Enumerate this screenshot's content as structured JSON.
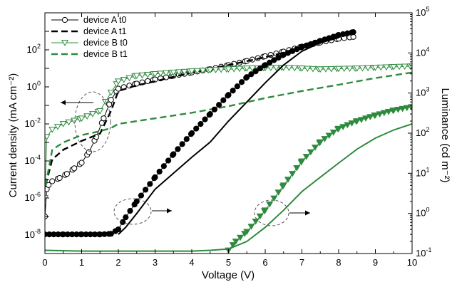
{
  "chart_data": {
    "type": "line",
    "title": "",
    "xlabel": "Voltage (V)",
    "ylabel_left": "Current density (mA cm⁻²)",
    "ylabel_right": "Luminance (cd m⁻²)",
    "xlim": [
      0,
      10
    ],
    "ylim_left": [
      1e-09,
      10000
    ],
    "ylim_right": [
      0.1,
      100000
    ],
    "yscale_left": "log",
    "yscale_right": "log",
    "grid": false,
    "legend_position": "top-left",
    "x_ticks": [
      "0",
      "1",
      "2",
      "3",
      "4",
      "5",
      "6",
      "7",
      "8",
      "9",
      "10"
    ],
    "y_left_ticks": [
      {
        "base": "10",
        "exp": "-8",
        "value": 1e-08
      },
      {
        "base": "10",
        "exp": "-6",
        "value": 1e-06
      },
      {
        "base": "10",
        "exp": "-4",
        "value": 0.0001
      },
      {
        "base": "10",
        "exp": "-2",
        "value": 0.01
      },
      {
        "base": "10",
        "exp": "0",
        "value": 1
      },
      {
        "base": "10",
        "exp": "2",
        "value": 100
      }
    ],
    "y_right_ticks": [
      {
        "base": "10",
        "exp": "-1",
        "value": 0.1
      },
      {
        "base": "10",
        "exp": "0",
        "value": 1
      },
      {
        "base": "10",
        "exp": "1",
        "value": 10
      },
      {
        "base": "10",
        "exp": "2",
        "value": 100
      },
      {
        "base": "10",
        "exp": "3",
        "value": 1000
      },
      {
        "base": "10",
        "exp": "4",
        "value": 10000
      },
      {
        "base": "10",
        "exp": "5",
        "value": 100000
      }
    ],
    "series": [
      {
        "name": "device A t0",
        "quantity": "current",
        "axis": "left",
        "color": "#000000",
        "style": "solid",
        "marker": "circle-open",
        "x": [
          0,
          0.05,
          0.1,
          0.2,
          0.4,
          0.6,
          0.8,
          1.0,
          1.2,
          1.4,
          1.6,
          1.8,
          2.0,
          2.5,
          3.0,
          3.5,
          4.0,
          4.5,
          5.0,
          5.5,
          6.0,
          6.5,
          7.0,
          7.5,
          8.0,
          8.4
        ],
        "y": [
          1e-07,
          3e-06,
          5e-06,
          8e-06,
          1.2e-05,
          2e-05,
          4e-05,
          8e-05,
          0.0003,
          0.002,
          0.02,
          0.2,
          0.8,
          1.5,
          2.5,
          4,
          6,
          9,
          15,
          25,
          45,
          80,
          150,
          250,
          400,
          500
        ]
      },
      {
        "name": "device A t1",
        "quantity": "current",
        "axis": "left",
        "color": "#000000",
        "style": "dashed",
        "marker": "none",
        "x": [
          0.02,
          0.2,
          0.5,
          1.0,
          1.5,
          1.8,
          2.0,
          2.5,
          3.0,
          3.5,
          4.0,
          5.0,
          6.0,
          6.5,
          7.0
        ],
        "y": [
          5e-06,
          0.00012,
          0.0004,
          0.0012,
          0.003,
          0.05,
          0.6,
          1.2,
          2,
          3.5,
          6,
          15,
          40,
          70,
          150
        ]
      },
      {
        "name": "device B t0",
        "quantity": "current",
        "axis": "left",
        "color": "#2e8b3e",
        "style": "solid",
        "marker": "triangle-down-open",
        "x": [
          0,
          0.05,
          0.2,
          0.5,
          1.0,
          1.5,
          1.8,
          2.0,
          2.5,
          3.0,
          3.5,
          4.0,
          4.5,
          5.0,
          5.5,
          6.0,
          6.5,
          7.0,
          7.5,
          8.0,
          8.5,
          9.0,
          9.5,
          10
        ],
        "y": [
          1e-06,
          0.002,
          0.005,
          0.01,
          0.02,
          0.05,
          0.5,
          2,
          4,
          5,
          6,
          7,
          8,
          9,
          10,
          10.5,
          11,
          10,
          9,
          9.5,
          10,
          11,
          12,
          13
        ]
      },
      {
        "name": "device B t1",
        "quantity": "current",
        "axis": "left",
        "color": "#2e8b3e",
        "style": "dashed",
        "marker": "none",
        "x": [
          0.02,
          0.2,
          0.5,
          1.0,
          1.5,
          1.8,
          2.0,
          3.0,
          4.0,
          5.0,
          6.0,
          7.0,
          8.0,
          9.0,
          10
        ],
        "y": [
          5e-06,
          0.0004,
          0.001,
          0.0025,
          0.004,
          0.006,
          0.01,
          0.02,
          0.04,
          0.09,
          0.25,
          0.6,
          1.3,
          3,
          6
        ]
      },
      {
        "name": "device A t0",
        "quantity": "luminance",
        "axis": "right",
        "color": "#000000",
        "style": "solid",
        "marker": "circle-filled",
        "x": [
          0,
          0.5,
          1.0,
          1.5,
          1.8,
          2.0,
          2.2,
          2.5,
          3.0,
          3.5,
          4.0,
          4.5,
          5.0,
          5.5,
          6.0,
          6.5,
          7.0,
          7.5,
          8.0,
          8.4
        ],
        "y": [
          0.3,
          0.3,
          0.3,
          0.3,
          0.31,
          0.4,
          0.8,
          2,
          8,
          30,
          100,
          300,
          900,
          2500,
          5000,
          9000,
          14000,
          20000,
          28000,
          33000
        ]
      },
      {
        "name": "device A t1",
        "quantity": "luminance",
        "axis": "right",
        "color": "#000000",
        "style": "solid",
        "marker": "none",
        "x": [
          2.0,
          2.2,
          2.5,
          3.0,
          3.5,
          4.0,
          4.5,
          5.0,
          5.5,
          6.0,
          6.5,
          7.0,
          7.5,
          8.0
        ],
        "y": [
          0.3,
          0.45,
          1.0,
          4,
          10,
          25,
          60,
          200,
          600,
          1800,
          5000,
          11000,
          18000,
          24000
        ]
      },
      {
        "name": "device B t0",
        "quantity": "luminance",
        "axis": "right",
        "color": "#2e8b3e",
        "style": "solid",
        "marker": "triangle-down-filled",
        "x": [
          5.0,
          5.2,
          5.5,
          6.0,
          6.5,
          7.0,
          7.5,
          8.0,
          8.5,
          9.0,
          9.5,
          10
        ],
        "y": [
          0.12,
          0.2,
          0.35,
          1.2,
          5,
          20,
          60,
          130,
          200,
          280,
          370,
          450
        ]
      },
      {
        "name": "device B t1",
        "quantity": "luminance",
        "axis": "right",
        "color": "#2e8b3e",
        "style": "solid",
        "marker": "none",
        "x": [
          0,
          1,
          2,
          3,
          4,
          4.5,
          5.0,
          5.5,
          6.0,
          6.5,
          7.0,
          7.5,
          8.0,
          8.5,
          9.0,
          9.5,
          10
        ],
        "y": [
          0.12,
          0.115,
          0.115,
          0.115,
          0.115,
          0.12,
          0.13,
          0.2,
          0.45,
          1.2,
          3.5,
          8,
          18,
          40,
          75,
          120,
          170
        ]
      }
    ]
  }
}
